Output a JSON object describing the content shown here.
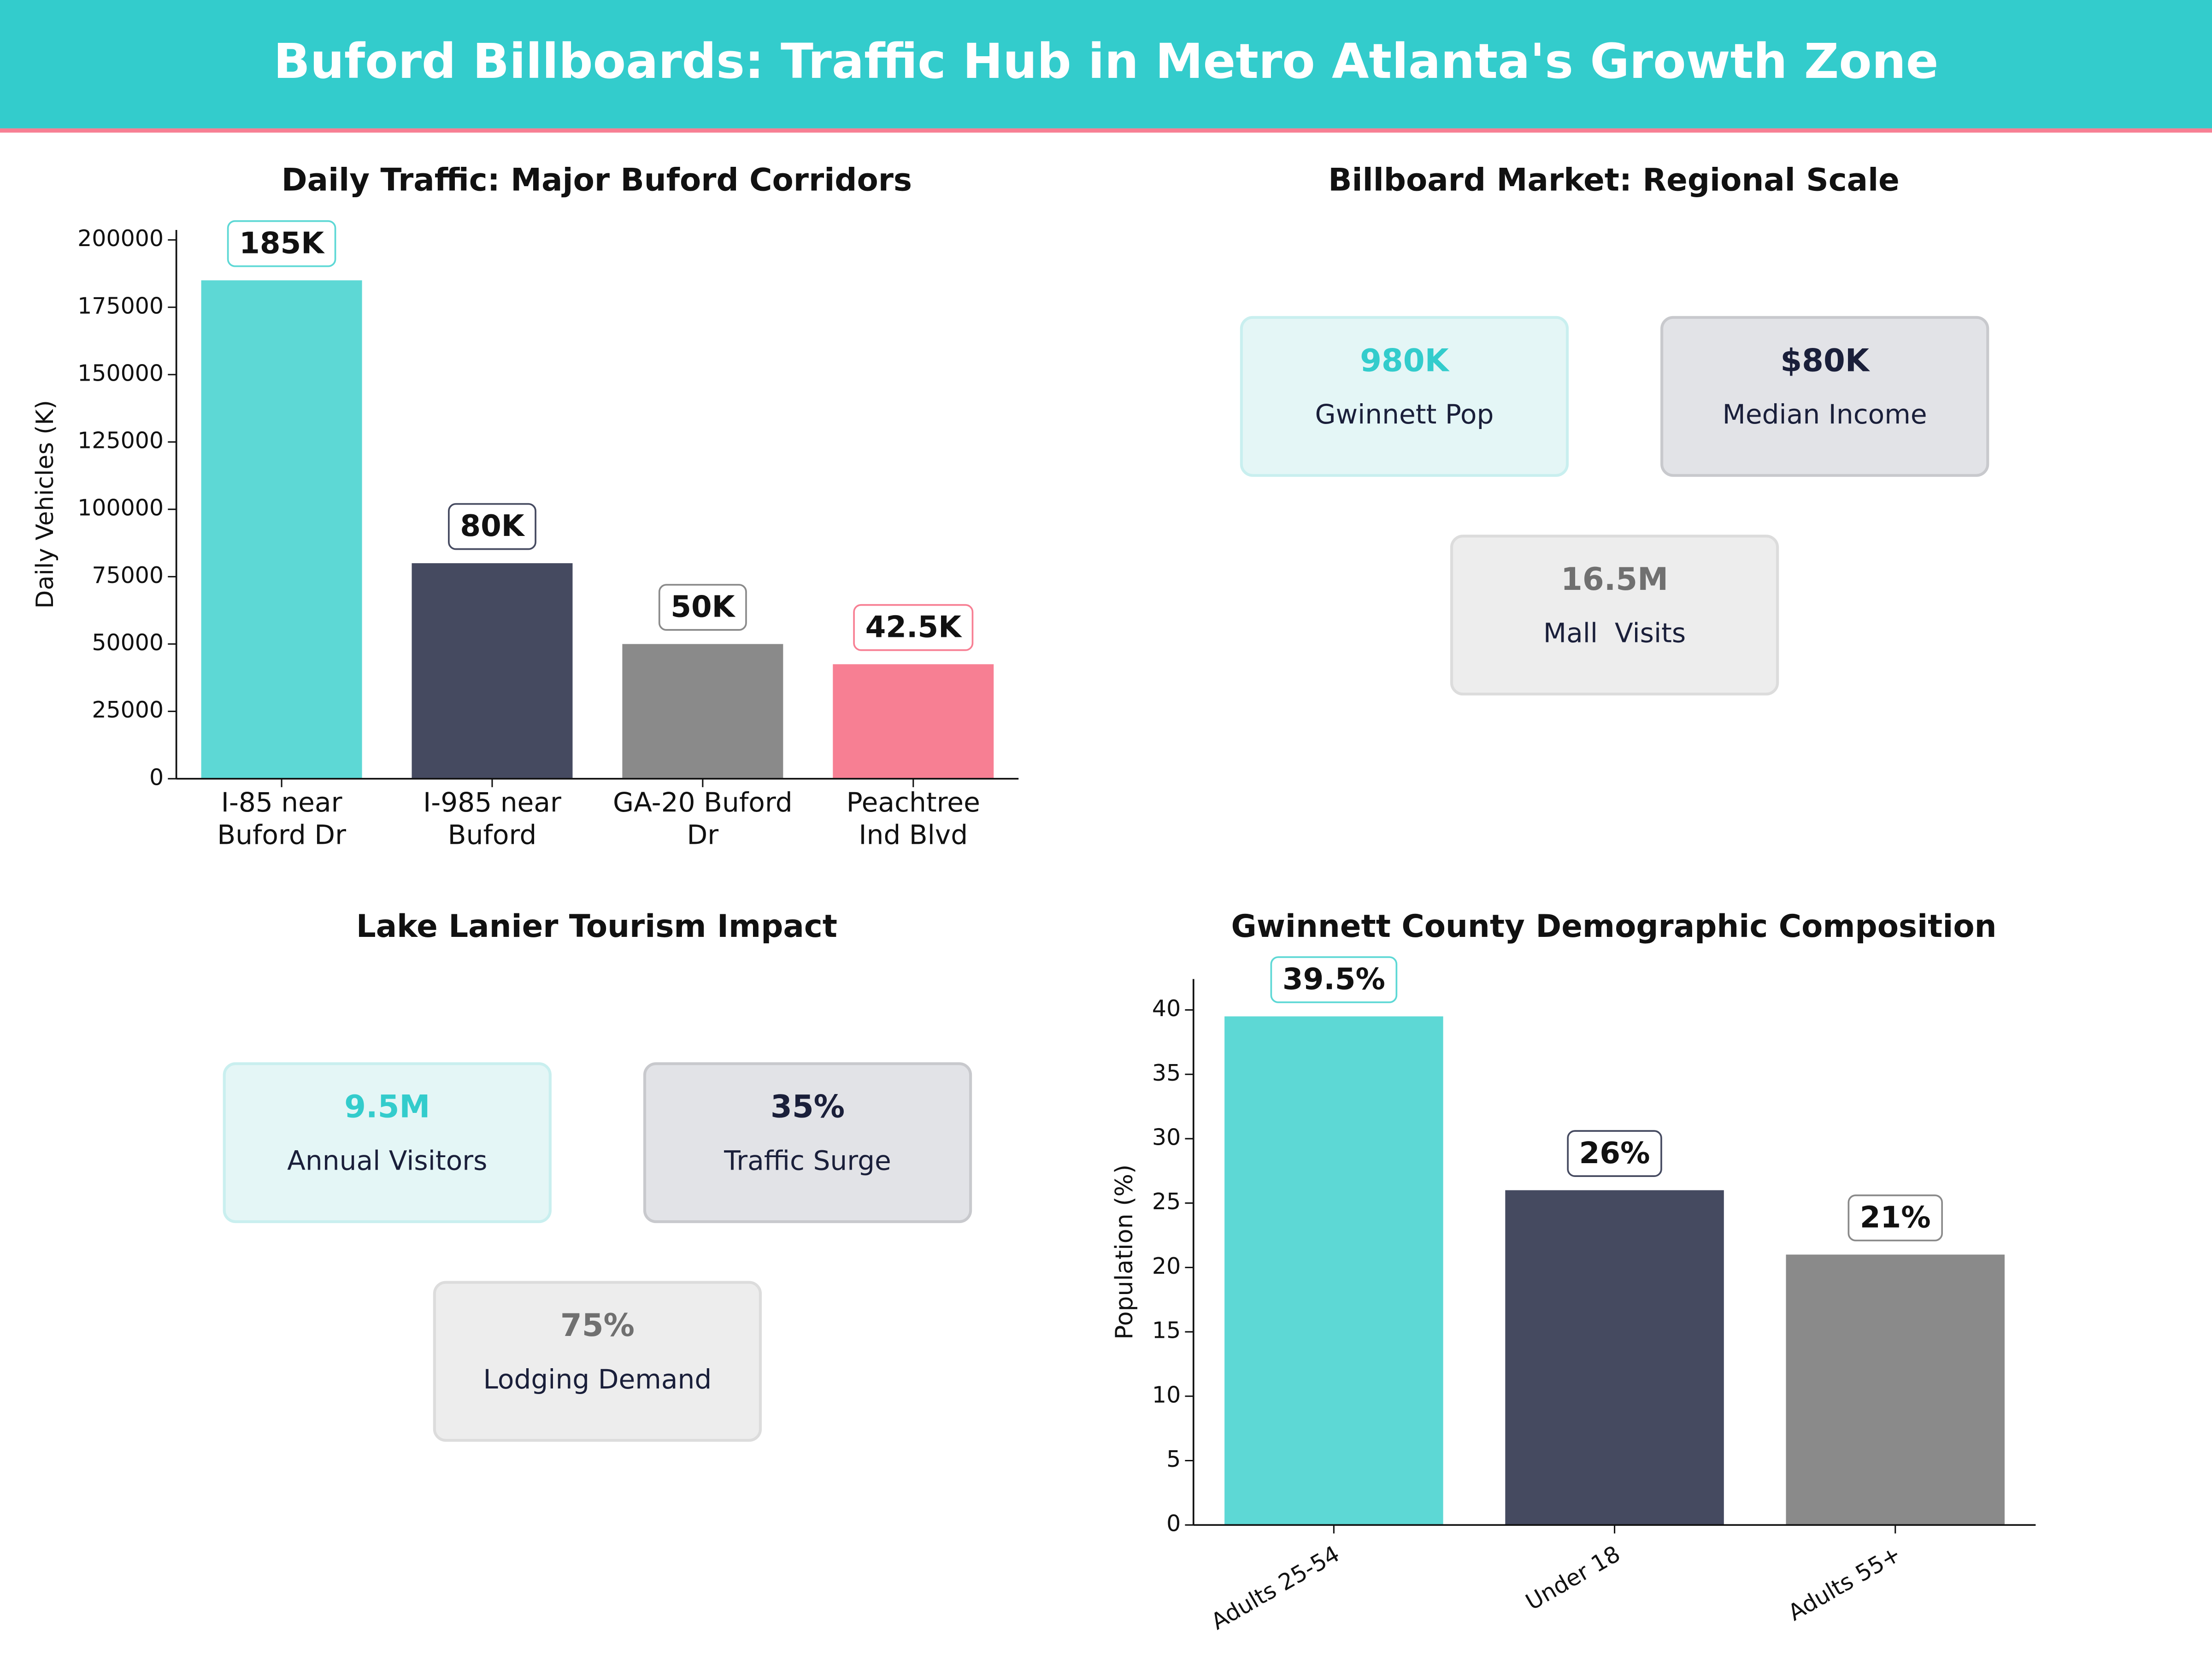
{
  "title": "Buford Billboards: Traffic Hub in Metro Atlanta's Growth Zone",
  "chart_data": [
    {
      "type": "bar",
      "title": "Daily Traffic: Major Buford Corridors",
      "ylabel": "Daily Vehicles (K)",
      "categories": [
        "I-85 near\nBuford Dr",
        "I-985 near\nBuford",
        "GA-20 Buford\nDr",
        "Peachtree\nInd Blvd"
      ],
      "values": [
        185000,
        80000,
        50000,
        42500
      ],
      "value_labels": [
        "185K",
        "80K",
        "50K",
        "42.5K"
      ],
      "colors": [
        "#5dd8d5",
        "#454a60",
        "#8a8a8a",
        "#f77f93"
      ],
      "ylim": [
        0,
        203700
      ],
      "yticks": [
        0,
        25000,
        50000,
        75000,
        100000,
        125000,
        150000,
        175000,
        200000
      ],
      "rotate_labels": false
    },
    {
      "type": "bar",
      "title": "Gwinnett County Demographic Composition",
      "ylabel": "Population (%)",
      "categories": [
        "Adults 25-54",
        "Under 18",
        "Adults 55+"
      ],
      "values": [
        39.5,
        26,
        21
      ],
      "value_labels": [
        "39.5%",
        "26%",
        "21%"
      ],
      "colors": [
        "#5dd8d5",
        "#454a60",
        "#8a8a8a"
      ],
      "ylim": [
        0,
        42.4
      ],
      "yticks": [
        0,
        5,
        10,
        15,
        20,
        25,
        30,
        35,
        40
      ],
      "rotate_labels": true
    }
  ],
  "kpi_panels": [
    {
      "title": "Billboard Market: Regional Scale",
      "cards": [
        {
          "value": "980K",
          "label": "Gwinnett Pop"
        },
        {
          "value": "$80K",
          "label": "Median Income"
        },
        {
          "value": "16.5M",
          "label": "Mall  Visits"
        }
      ]
    },
    {
      "title": "Lake Lanier Tourism Impact",
      "cards": [
        {
          "value": "9.5M",
          "label": "Annual Visitors"
        },
        {
          "value": "35%",
          "label": "Traffic Surge"
        },
        {
          "value": "75%",
          "label": "Lodging Demand"
        }
      ]
    }
  ]
}
